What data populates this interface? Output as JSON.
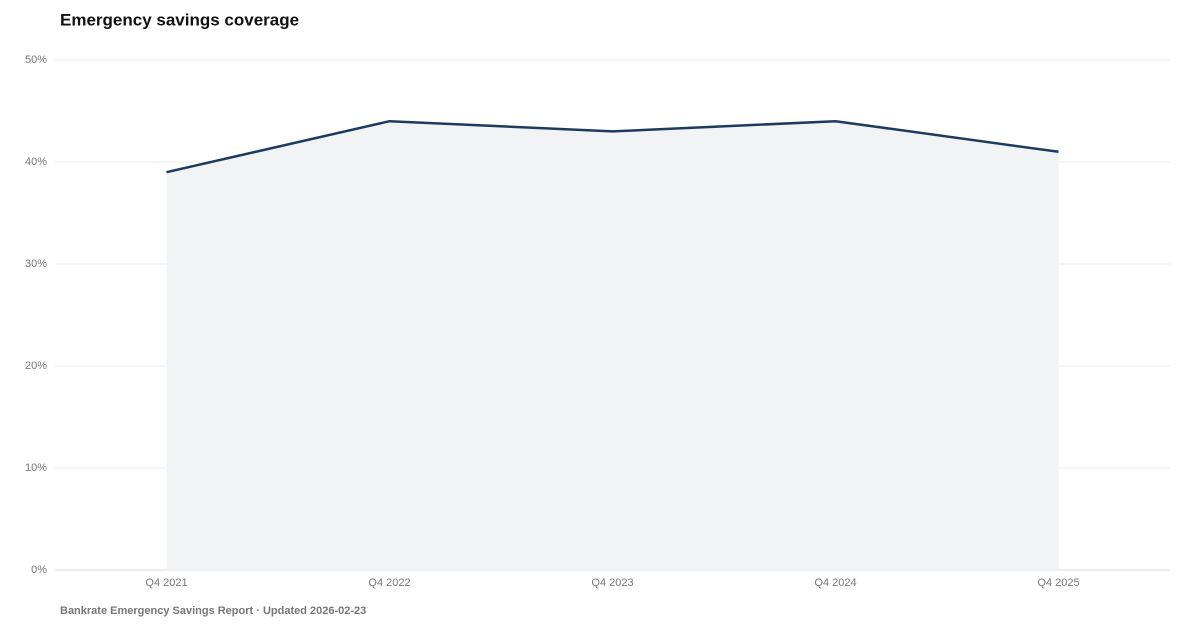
{
  "chart_data": {
    "type": "area",
    "title": "Emergency savings coverage",
    "footer": "Bankrate Emergency Savings Report · Updated 2026-02-23",
    "categories": [
      "Q4 2021",
      "Q4 2022",
      "Q4 2023",
      "Q4 2024",
      "Q4 2025"
    ],
    "values": [
      39,
      44,
      43,
      44,
      41
    ],
    "color": "#1e3a5f",
    "fill": "#f1f3f5",
    "ylim": [
      0,
      50
    ],
    "yticks": [
      {
        "value": 0,
        "label": "0%"
      },
      {
        "value": 10,
        "label": "10%"
      },
      {
        "value": 20,
        "label": "20%"
      },
      {
        "value": 30,
        "label": "30%"
      },
      {
        "value": 40,
        "label": "40%"
      },
      {
        "value": 50,
        "label": "50%"
      }
    ],
    "grid": true
  }
}
